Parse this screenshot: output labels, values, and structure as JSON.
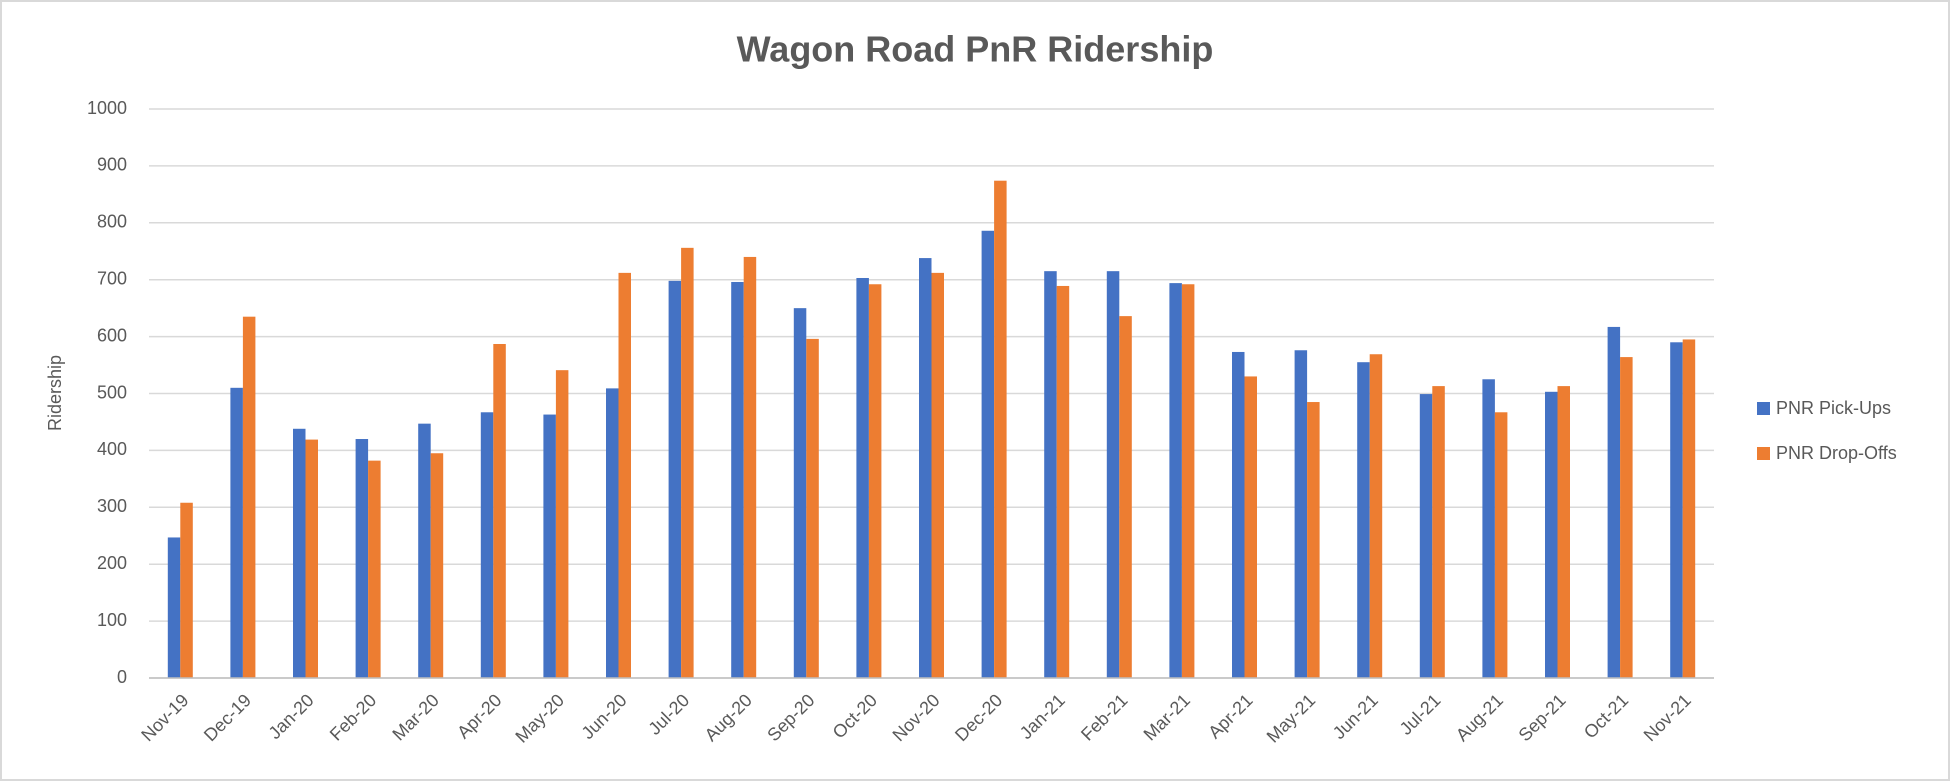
{
  "chart_data": {
    "type": "bar",
    "title": "Wagon Road PnR Ridership",
    "y_label": "Ridership",
    "categories": [
      "Nov-19",
      "Dec-19",
      "Jan-20",
      "Feb-20",
      "Mar-20",
      "Apr-20",
      "May-20",
      "Jun-20",
      "Jul-20",
      "Aug-20",
      "Sep-20",
      "Oct-20",
      "Nov-20",
      "Dec-20",
      "Jan-21",
      "Feb-21",
      "Mar-21",
      "Apr-21",
      "May-21",
      "Jun-21",
      "Jul-21",
      "Aug-21",
      "Sep-21",
      "Oct-21",
      "Nov-21"
    ],
    "series": [
      {
        "name": "PNR Pick-Ups",
        "color": "#4472c4",
        "values": [
          247,
          510,
          438,
          420,
          447,
          467,
          463,
          509,
          698,
          696,
          650,
          703,
          738,
          786,
          715,
          715,
          694,
          573,
          576,
          555,
          499,
          525,
          503,
          617,
          590
        ]
      },
      {
        "name": "PNR Drop-Offs",
        "color": "#ed7d31",
        "values": [
          308,
          635,
          419,
          382,
          395,
          587,
          541,
          712,
          756,
          740,
          596,
          692,
          712,
          874,
          689,
          636,
          692,
          530,
          485,
          569,
          513,
          467,
          513,
          564,
          595
        ]
      }
    ],
    "ylim": [
      0,
      1000
    ],
    "yticks": [
      0,
      100,
      200,
      300,
      400,
      500,
      600,
      700,
      800,
      900,
      1000
    ],
    "grid": true,
    "legend": "right"
  }
}
